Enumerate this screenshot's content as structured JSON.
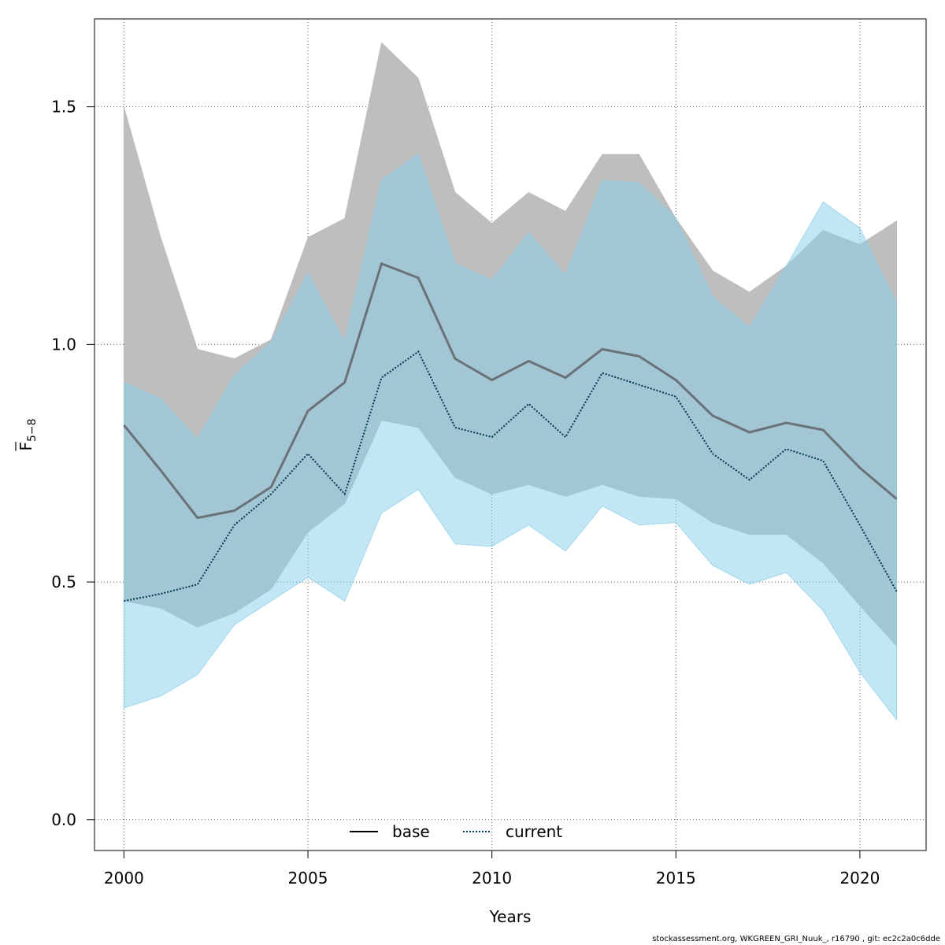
{
  "chart_data": {
    "type": "area",
    "xlabel": "Years",
    "ylabel": "F",
    "ylabel_subscript": "5−8",
    "xlim": [
      1999.2,
      2021.8
    ],
    "ylim": [
      -0.065,
      1.685
    ],
    "x_ticks": [
      2000,
      2005,
      2010,
      2015,
      2020
    ],
    "x_tick_labels": [
      "2000",
      "2005",
      "2010",
      "2015",
      "2020"
    ],
    "y_ticks": [
      0.0,
      0.5,
      1.0,
      1.5
    ],
    "y_tick_labels": [
      "0.0",
      "0.5",
      "1.0",
      "1.5"
    ],
    "grid": true,
    "legend_position": "bottom-center",
    "x": [
      2000,
      2001,
      2002,
      2003,
      2004,
      2005,
      2006,
      2007,
      2008,
      2009,
      2010,
      2011,
      2012,
      2013,
      2014,
      2015,
      2016,
      2017,
      2018,
      2019,
      2020,
      2021
    ],
    "series": [
      {
        "name": "base",
        "line_style": "solid",
        "band_color": "#bebebe",
        "line_color": "#555555",
        "values": [
          0.83,
          0.735,
          0.635,
          0.65,
          0.7,
          0.86,
          0.92,
          1.17,
          1.14,
          0.97,
          0.925,
          0.965,
          0.93,
          0.99,
          0.975,
          0.925,
          0.85,
          0.815,
          0.835,
          0.82,
          0.74,
          0.675
        ],
        "lower": [
          0.46,
          0.445,
          0.405,
          0.435,
          0.485,
          0.605,
          0.665,
          0.84,
          0.825,
          0.72,
          0.685,
          0.705,
          0.68,
          0.705,
          0.68,
          0.675,
          0.625,
          0.6,
          0.6,
          0.54,
          0.45,
          0.365
        ],
        "upper": [
          1.5,
          1.225,
          0.99,
          0.97,
          1.01,
          1.225,
          1.265,
          1.635,
          1.56,
          1.32,
          1.255,
          1.32,
          1.28,
          1.4,
          1.4,
          1.265,
          1.155,
          1.11,
          1.165,
          1.24,
          1.21,
          1.26
        ]
      },
      {
        "name": "current",
        "line_style": "dotted",
        "band_color": "#87ceeb",
        "line_color": "#00384d",
        "values": [
          0.46,
          0.475,
          0.495,
          0.62,
          0.685,
          0.77,
          0.685,
          0.93,
          0.985,
          0.825,
          0.805,
          0.875,
          0.805,
          0.94,
          0.915,
          0.89,
          0.77,
          0.715,
          0.78,
          0.755,
          0.62,
          0.48
        ],
        "lower": [
          0.235,
          0.26,
          0.305,
          0.41,
          0.46,
          0.51,
          0.46,
          0.645,
          0.695,
          0.58,
          0.575,
          0.62,
          0.565,
          0.66,
          0.62,
          0.625,
          0.535,
          0.495,
          0.52,
          0.44,
          0.31,
          0.21
        ],
        "upper": [
          0.92,
          0.885,
          0.8,
          0.935,
          1.005,
          1.15,
          1.005,
          1.345,
          1.4,
          1.17,
          1.135,
          1.235,
          1.145,
          1.345,
          1.34,
          1.265,
          1.1,
          1.035,
          1.165,
          1.3,
          1.245,
          1.085
        ]
      }
    ]
  },
  "footer": {
    "text": "stockassessment.org, WKGREEN_GRI_Nuuk_, r16790 , git: ec2c2a0c6dde"
  }
}
